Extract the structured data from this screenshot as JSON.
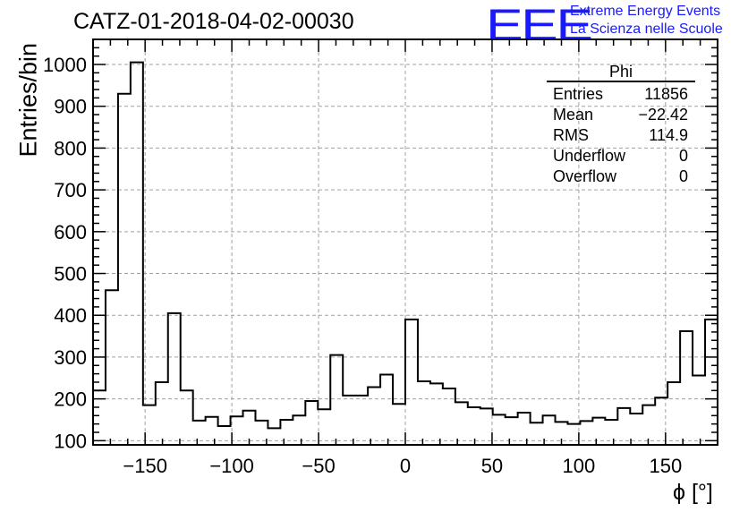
{
  "title": "CATZ-01-2018-04-02-00030",
  "logo": {
    "mark": "EEE",
    "line1": "Extreme Energy Events",
    "line2": "La Scienza nelle Scuole",
    "color": "#1a1aff"
  },
  "stats": {
    "name": "Phi",
    "rows": [
      {
        "label": "Entries",
        "value": "11856"
      },
      {
        "label": "Mean",
        "value": "−22.42"
      },
      {
        "label": "RMS",
        "value": "114.9"
      },
      {
        "label": "Underflow",
        "value": "0"
      },
      {
        "label": "Overflow",
        "value": "0"
      }
    ]
  },
  "chart_data": {
    "type": "histogram",
    "title": "CATZ-01-2018-04-02-00030",
    "xlabel": "ϕ [°]",
    "ylabel": "Entries/bin",
    "xlim": [
      -180,
      180
    ],
    "ylim": [
      90,
      1060
    ],
    "bin_width": 7.2,
    "x_ticks": [
      -150,
      -100,
      -50,
      0,
      50,
      100,
      150
    ],
    "x_tick_labels": [
      "−150",
      "−100",
      "−50",
      "0",
      "50",
      "100",
      "150"
    ],
    "y_ticks": [
      100,
      200,
      300,
      400,
      500,
      600,
      700,
      800,
      900,
      1000
    ],
    "y_tick_labels": [
      "100",
      "200",
      "300",
      "400",
      "500",
      "600",
      "700",
      "800",
      "900",
      "1000"
    ],
    "grid": true,
    "line_color": "#000000",
    "values": [
      220,
      460,
      930,
      1005,
      185,
      240,
      405,
      220,
      148,
      157,
      135,
      158,
      172,
      148,
      130,
      150,
      160,
      195,
      175,
      305,
      208,
      208,
      228,
      258,
      188,
      390,
      242,
      237,
      225,
      192,
      180,
      177,
      162,
      156,
      167,
      143,
      160,
      145,
      140,
      147,
      155,
      150,
      178,
      165,
      185,
      203,
      240,
      362,
      256,
      390
    ]
  }
}
